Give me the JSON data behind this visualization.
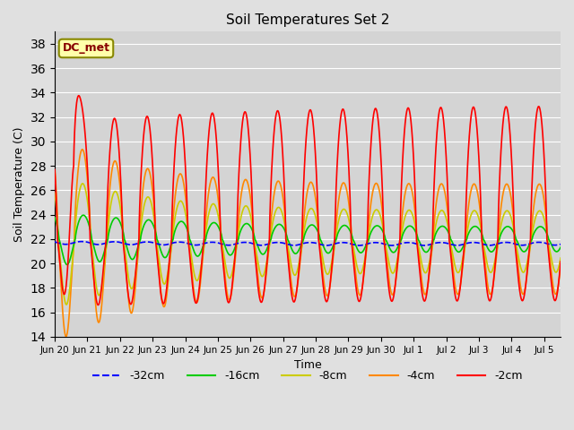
{
  "title": "Soil Temperatures Set 2",
  "xlabel": "Time",
  "ylabel": "Soil Temperature (C)",
  "ylim": [
    14,
    39
  ],
  "yticks": [
    14,
    16,
    18,
    20,
    22,
    24,
    26,
    28,
    30,
    32,
    34,
    36,
    38
  ],
  "xlim": [
    0,
    15.5
  ],
  "bg_color": "#e0e0e0",
  "plot_bg_color": "#d4d4d4",
  "grid_color": "#ffffff",
  "annotation_text": "DC_met",
  "annotation_bg": "#ffffaa",
  "annotation_border": "#888800",
  "annotation_text_color": "#880000",
  "colors": {
    "-32cm": "#0000ff",
    "-16cm": "#00cc00",
    "-8cm": "#cccc00",
    "-4cm": "#ff8800",
    "-2cm": "#ff0000"
  },
  "linestyles": {
    "-32cm": "--",
    "-16cm": "-",
    "-8cm": "-",
    "-4cm": "-",
    "-2cm": "-"
  },
  "xtick_labels": [
    "Jun 20",
    "Jun 21",
    "Jun 22",
    "Jun 23",
    "Jun 24",
    "Jun 25",
    "Jun 26",
    "Jun 27",
    "Jun 28",
    "Jun 29",
    "Jun 30",
    "Jul 1",
    "Jul 2",
    "Jul 3",
    "Jul 4",
    "Jul 5"
  ],
  "figsize": [
    6.4,
    4.8
  ],
  "dpi": 100
}
